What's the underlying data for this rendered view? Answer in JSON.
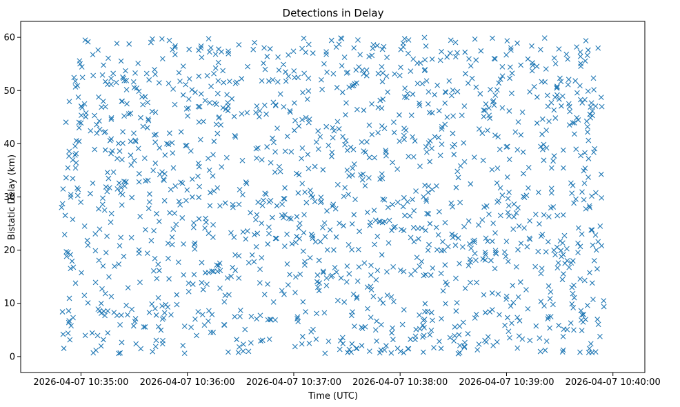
{
  "chart_data": {
    "type": "scatter",
    "title": "Detections in Delay",
    "xlabel": "Time (UTC)",
    "ylabel": "Bistatic Delay (km)",
    "marker": "x",
    "color": "#1f77b4",
    "grid": false,
    "legend": "none",
    "x_start": "2026-04-07 10:34:49",
    "x_end": "2026-04-07 10:39:55",
    "xlim": [
      "2026-04-07 10:34:26",
      "2026-04-07 10:40:18"
    ],
    "ylim": [
      -3,
      63
    ],
    "x_ticks": [
      "2026-04-07 10:35:00",
      "2026-04-07 10:36:00",
      "2026-04-07 10:37:00",
      "2026-04-07 10:38:00",
      "2026-04-07 10:39:00",
      "2026-04-07 10:40:00"
    ],
    "y_ticks": [
      "0",
      "10",
      "20",
      "30",
      "40",
      "50",
      "60"
    ],
    "y_ticks_values": [
      0,
      10,
      20,
      30,
      40,
      50,
      60
    ],
    "n_points": 1500,
    "y_range": [
      0.5,
      60
    ]
  }
}
